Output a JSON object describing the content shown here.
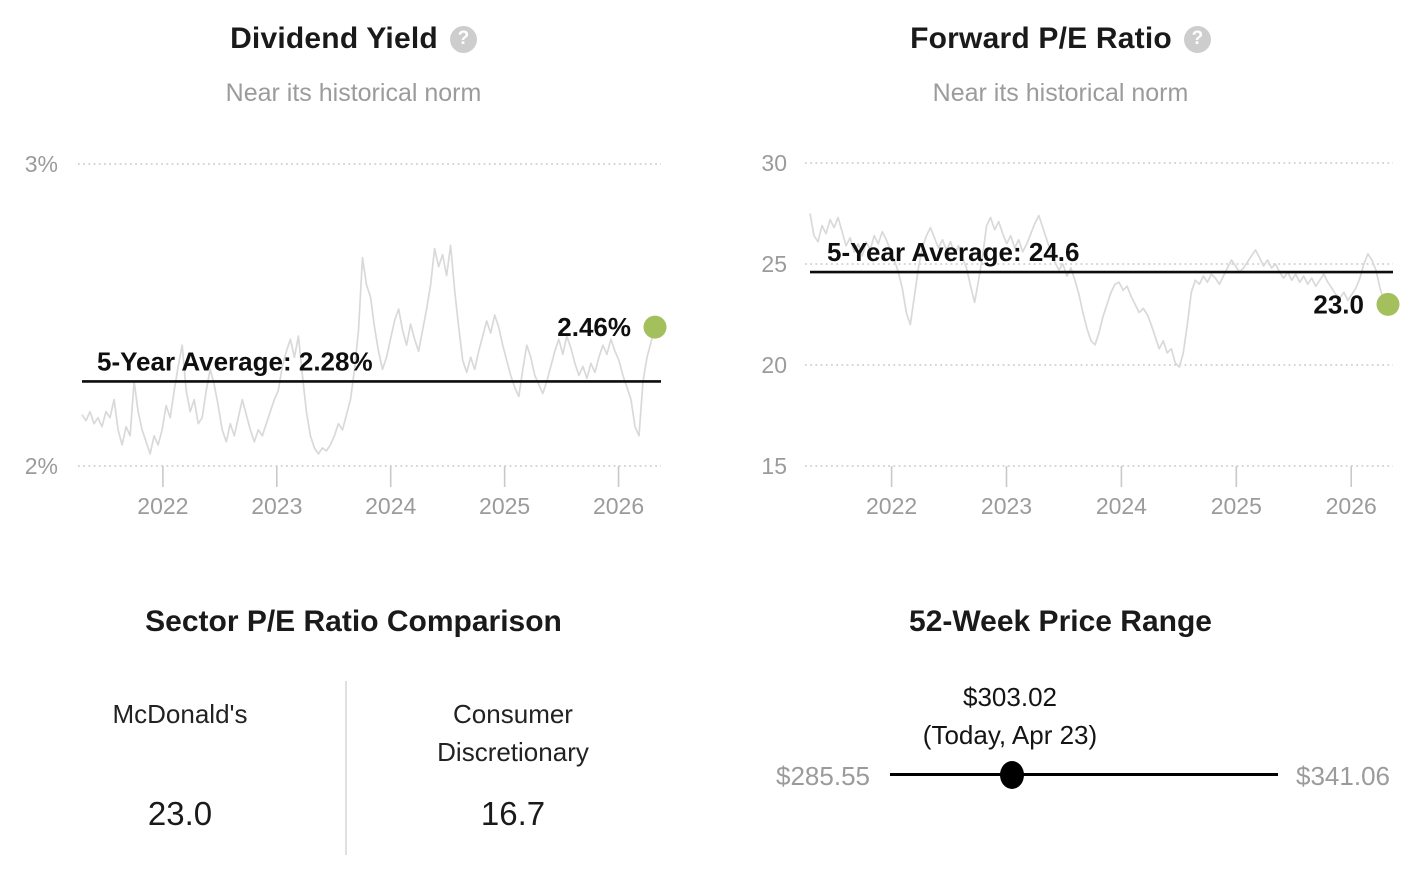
{
  "panels": {
    "dividend_yield": {
      "title": "Dividend Yield",
      "subtitle": "Near its historical norm",
      "help_icon": "?"
    },
    "forward_pe": {
      "title": "Forward P/E Ratio",
      "subtitle": "Near its historical norm",
      "help_icon": "?"
    },
    "sector_comparison": {
      "title": "Sector P/E Ratio Comparison",
      "left": {
        "label": "McDonald's",
        "value": "23.0"
      },
      "right": {
        "label": "Consumer Discretionary",
        "value": "16.7"
      }
    },
    "price_range": {
      "title": "52-Week Price Range",
      "current_price": "$303.02",
      "current_date": "(Today, Apr 23)",
      "low": "$285.55",
      "high": "$341.06",
      "position_in_range_pct": 31.5
    }
  },
  "colors": {
    "accent_green": "#a4c05c",
    "series_gray": "#d9d9d9",
    "grid_gray": "#c9c9c9",
    "text_gray": "#9b9b9b",
    "text_dark": "#1a1a1a"
  },
  "chart_data": [
    {
      "type": "line",
      "title": "Dividend Yield",
      "subtitle": "Near its historical norm",
      "x_range": [
        2021.29,
        2026.32
      ],
      "x_ticks": [
        2022,
        2023,
        2024,
        2025,
        2026
      ],
      "y_ticks": [
        {
          "value": 3,
          "label": "3%"
        },
        {
          "value": 2,
          "label": "2%"
        }
      ],
      "ylim": [
        2,
        3
      ],
      "grid": "dotted-horizontal",
      "average": {
        "label": "5-Year Average: 2.28%",
        "value": 2.28
      },
      "current": {
        "label": "2.46%",
        "value": 2.46
      },
      "values": [
        2.17,
        2.15,
        2.18,
        2.14,
        2.16,
        2.13,
        2.18,
        2.16,
        2.22,
        2.12,
        2.07,
        2.13,
        2.1,
        2.28,
        2.18,
        2.12,
        2.08,
        2.04,
        2.1,
        2.07,
        2.12,
        2.2,
        2.16,
        2.25,
        2.33,
        2.4,
        2.25,
        2.18,
        2.22,
        2.14,
        2.16,
        2.25,
        2.32,
        2.27,
        2.2,
        2.12,
        2.08,
        2.14,
        2.1,
        2.16,
        2.22,
        2.17,
        2.12,
        2.08,
        2.12,
        2.1,
        2.14,
        2.18,
        2.22,
        2.25,
        2.33,
        2.38,
        2.42,
        2.36,
        2.43,
        2.3,
        2.18,
        2.1,
        2.06,
        2.04,
        2.06,
        2.05,
        2.07,
        2.1,
        2.14,
        2.12,
        2.17,
        2.22,
        2.32,
        2.45,
        2.69,
        2.6,
        2.56,
        2.46,
        2.38,
        2.32,
        2.36,
        2.42,
        2.48,
        2.52,
        2.45,
        2.4,
        2.47,
        2.42,
        2.38,
        2.45,
        2.52,
        2.6,
        2.72,
        2.66,
        2.7,
        2.63,
        2.73,
        2.58,
        2.46,
        2.35,
        2.31,
        2.36,
        2.32,
        2.38,
        2.43,
        2.48,
        2.44,
        2.5,
        2.46,
        2.4,
        2.35,
        2.3,
        2.26,
        2.23,
        2.32,
        2.4,
        2.36,
        2.3,
        2.27,
        2.24,
        2.28,
        2.33,
        2.38,
        2.42,
        2.37,
        2.43,
        2.39,
        2.34,
        2.3,
        2.33,
        2.29,
        2.34,
        2.31,
        2.36,
        2.4,
        2.37,
        2.42,
        2.38,
        2.35,
        2.3,
        2.26,
        2.22,
        2.13,
        2.1,
        2.28,
        2.36,
        2.41,
        2.46
      ]
    },
    {
      "type": "line",
      "title": "Forward P/E Ratio",
      "subtitle": "Near its historical norm",
      "x_range": [
        2021.29,
        2026.32
      ],
      "x_ticks": [
        2022,
        2023,
        2024,
        2025,
        2026
      ],
      "y_ticks": [
        {
          "value": 30,
          "label": "30"
        },
        {
          "value": 25,
          "label": "25"
        },
        {
          "value": 20,
          "label": "20"
        },
        {
          "value": 15,
          "label": "15"
        }
      ],
      "ylim": [
        15,
        30
      ],
      "grid": "dotted-horizontal",
      "average": {
        "label": "5-Year Average: 24.6",
        "value": 24.6
      },
      "current": {
        "label": "23.0",
        "value": 23.0
      },
      "values": [
        27.5,
        26.4,
        26.1,
        26.9,
        26.5,
        27.2,
        26.8,
        27.3,
        26.6,
        25.9,
        26.3,
        25.6,
        26.0,
        25.4,
        26.1,
        25.7,
        26.4,
        26.0,
        26.6,
        26.2,
        25.7,
        25.2,
        24.6,
        23.8,
        22.6,
        22.0,
        23.4,
        24.8,
        25.8,
        26.4,
        26.8,
        26.3,
        25.8,
        26.2,
        25.7,
        26.1,
        25.5,
        25.9,
        25.3,
        24.8,
        23.9,
        23.1,
        24.2,
        25.4,
        26.9,
        27.3,
        26.7,
        27.1,
        26.5,
        26.0,
        26.4,
        25.8,
        26.2,
        25.6,
        26.0,
        26.5,
        27.0,
        27.4,
        26.8,
        26.2,
        25.6,
        25.1,
        24.7,
        25.0,
        24.4,
        24.8,
        24.2,
        23.5,
        22.6,
        21.8,
        21.2,
        21.0,
        21.6,
        22.4,
        23.0,
        23.6,
        24.0,
        24.1,
        23.7,
        23.9,
        23.4,
        23.0,
        22.6,
        22.8,
        22.5,
        22.0,
        21.4,
        20.8,
        21.2,
        20.6,
        20.8,
        20.1,
        19.9,
        20.6,
        22.0,
        23.6,
        24.2,
        24.0,
        24.4,
        24.1,
        24.5,
        24.3,
        24.0,
        24.4,
        24.8,
        25.2,
        24.9,
        24.6,
        24.8,
        25.1,
        25.4,
        25.7,
        25.3,
        24.9,
        25.2,
        24.8,
        25.0,
        24.6,
        24.3,
        24.6,
        24.2,
        24.5,
        24.1,
        24.4,
        24.0,
        24.3,
        23.9,
        24.2,
        24.5,
        24.1,
        23.8,
        23.5,
        23.3,
        23.6,
        23.2,
        23.5,
        23.8,
        24.3,
        25.0,
        25.5,
        25.2,
        24.7,
        23.8,
        23.2,
        23.0
      ]
    }
  ]
}
